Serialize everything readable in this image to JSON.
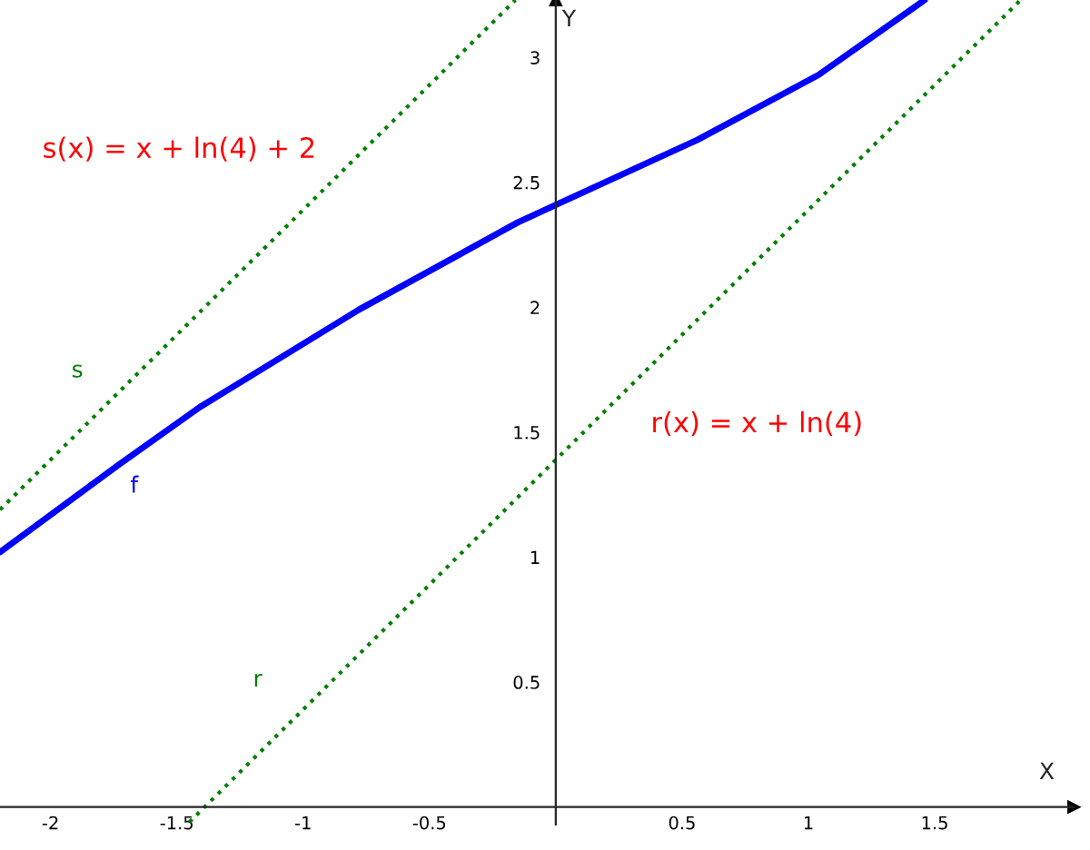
{
  "chart_data": {
    "type": "line",
    "xlabel": "X",
    "ylabel": "Y",
    "xlim": [
      -2.2,
      2.05
    ],
    "ylim": [
      -0.07,
      3.23
    ],
    "xticks": [
      -2,
      -1.5,
      -1,
      -0.5,
      0.5,
      1,
      1.5
    ],
    "yticks": [
      0.5,
      1,
      1.5,
      2,
      2.5,
      3
    ],
    "grid": false,
    "legend": false,
    "series": [
      {
        "name": "f",
        "color": "#0000ff",
        "line_style": "solid",
        "x": [
          -2.2,
          -1.73,
          -1.41,
          -0.78,
          -0.15,
          0,
          0.56,
          1.04,
          1.46
        ],
        "values": [
          1.02,
          1.37,
          1.6,
          1.99,
          2.34,
          2.41,
          2.67,
          2.93,
          3.23
        ]
      },
      {
        "name": "r",
        "color": "#007f00",
        "line_style": "dotted",
        "x": [
          -1.45,
          1.84
        ],
        "values": [
          -0.06,
          3.23
        ]
      },
      {
        "name": "s",
        "color": "#007f00",
        "line_style": "dotted",
        "x": [
          -2.2,
          -0.16
        ],
        "values": [
          1.19,
          3.23
        ]
      }
    ],
    "annotations": [
      "s(x) = x + ln(4) + 2",
      "r(x) = x + ln(4)"
    ]
  }
}
